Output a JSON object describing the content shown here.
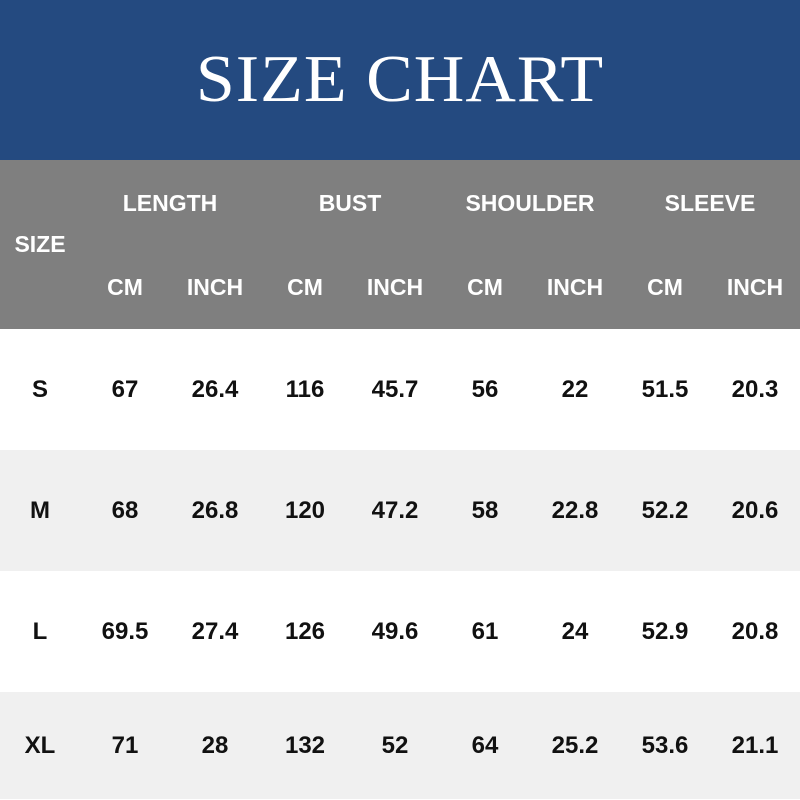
{
  "title": "SIZE CHART",
  "header": {
    "size_label": "SIZE",
    "groups": [
      "LENGTH",
      "BUST",
      "SHOULDER",
      "SLEEVE"
    ],
    "units": [
      "CM",
      "INCH",
      "CM",
      "INCH",
      "CM",
      "INCH",
      "CM",
      "INCH"
    ]
  },
  "rows": [
    {
      "size": "S",
      "values": [
        "67",
        "26.4",
        "116",
        "45.7",
        "56",
        "22",
        "51.5",
        "20.3"
      ]
    },
    {
      "size": "M",
      "values": [
        "68",
        "26.8",
        "120",
        "47.2",
        "58",
        "22.8",
        "52.2",
        "20.6"
      ]
    },
    {
      "size": "L",
      "values": [
        "69.5",
        "27.4",
        "126",
        "49.6",
        "61",
        "24",
        "52.9",
        "20.8"
      ]
    },
    {
      "size": "XL",
      "values": [
        "71",
        "28",
        "132",
        "52",
        "64",
        "25.2",
        "53.6",
        "21.1"
      ]
    }
  ],
  "colors": {
    "banner": "#244a80",
    "header": "#7f7f7f",
    "row_alt": "#f0f0f0"
  }
}
